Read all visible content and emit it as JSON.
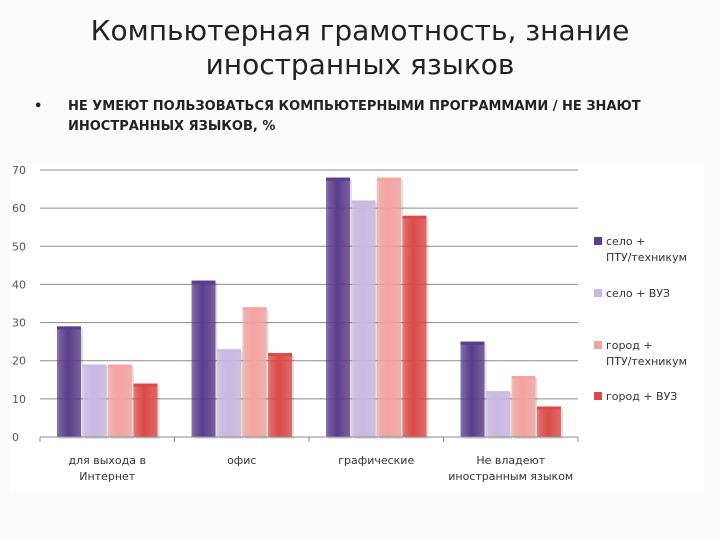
{
  "slide": {
    "title_line1": "Компьютерная грамотность, знание",
    "title_line2": "иностранных языков",
    "bullet_symbol": "•",
    "bullet_text": "НЕ УМЕЮТ ПОЛЬЗОВАТЬСЯ КОМПЬЮТЕРНЫМИ ПРОГРАММАМИ / НЕ ЗНАЮТ ИНОСТРАННЫХ ЯЗЫКОВ, %"
  },
  "chart_data": {
    "type": "bar",
    "categories": [
      [
        "для выхода в",
        "Интернет"
      ],
      [
        "офис"
      ],
      [
        "графические"
      ],
      [
        "Не владеют",
        "иностранным языком"
      ]
    ],
    "series": [
      {
        "name": [
          "село +",
          "ПТУ/техникум"
        ],
        "values": [
          29,
          41,
          68,
          25
        ],
        "color": "#5a3d8c"
      },
      {
        "name": [
          "село + ВУЗ"
        ],
        "values": [
          19,
          23,
          62,
          12
        ],
        "color": "#c9b8e2"
      },
      {
        "name": [
          "город +",
          "ПТУ/техникум"
        ],
        "values": [
          19,
          34,
          68,
          16
        ],
        "color": "#f4a3a0"
      },
      {
        "name": [
          "город + ВУЗ"
        ],
        "values": [
          14,
          22,
          58,
          8
        ],
        "color": "#dc4a47"
      }
    ],
    "ylim": [
      0,
      70
    ],
    "yticks": [
      "0",
      "10",
      "20",
      "30",
      "40",
      "50",
      "60",
      "70"
    ],
    "grid": true,
    "legend": "right"
  }
}
